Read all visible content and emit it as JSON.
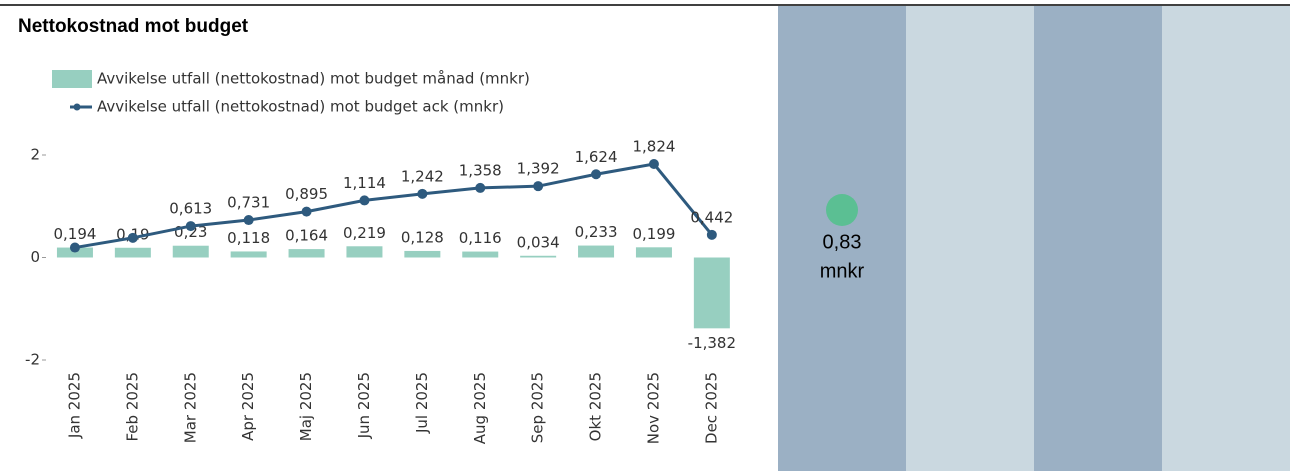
{
  "chart_data": {
    "type": "combo",
    "title": "Nettokostnad mot budget",
    "categories": [
      "Jan 2025",
      "Feb 2025",
      "Mar 2025",
      "Apr 2025",
      "Maj 2025",
      "Jun 2025",
      "Jul 2025",
      "Aug 2025",
      "Sep 2025",
      "Okt 2025",
      "Nov 2025",
      "Dec 2025"
    ],
    "series": [
      {
        "name": "Avvikelse utfall (nettokostnad) mot budget månad (mnkr)",
        "type": "bar",
        "color": "#97cfc0",
        "values": [
          0.194,
          0.19,
          0.23,
          0.118,
          0.164,
          0.219,
          0.128,
          0.116,
          0.034,
          0.233,
          0.199,
          -1.382
        ],
        "value_labels": [
          "0,194",
          "0,19",
          "0,23",
          "0,118",
          "0,164",
          "0,219",
          "0,128",
          "0,116",
          "0,034",
          "0,233",
          "0,199",
          "-1,382"
        ]
      },
      {
        "name": "Avvikelse utfall (nettokostnad) mot budget ack (mnkr)",
        "type": "line",
        "color": "#2e5a7e",
        "values": [
          0.194,
          0.384,
          0.613,
          0.731,
          0.895,
          1.114,
          1.242,
          1.358,
          1.392,
          1.624,
          1.824,
          0.442
        ],
        "value_labels": [
          null,
          null,
          "0,613",
          "0,731",
          "0,895",
          "1,114",
          "1,242",
          "1,358",
          "1,392",
          "1,624",
          "1,824",
          "0,442"
        ]
      }
    ],
    "ylim": [
      -2,
      2
    ],
    "yticks": [
      -2,
      0,
      2
    ],
    "grid": false,
    "legend": "top-left"
  },
  "kpi": {
    "value": "0,83",
    "unit": "mnkr",
    "color": "#5bbf93"
  }
}
